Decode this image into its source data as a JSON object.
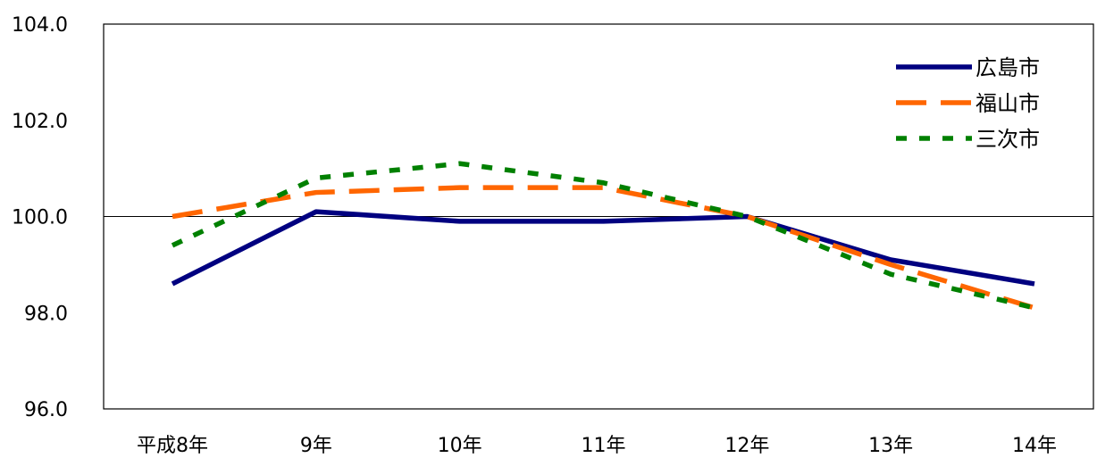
{
  "chart_data": {
    "type": "line",
    "categories": [
      "平成8年",
      "9年",
      "10年",
      "11年",
      "12年",
      "13年",
      "14年"
    ],
    "ylim": [
      96.0,
      104.0
    ],
    "yticks": [
      "104.0",
      "102.0",
      "100.0",
      "98.0",
      "96.0"
    ],
    "ytick_values": [
      104,
      102,
      100,
      98,
      96
    ],
    "reference_line": 100.0,
    "grid": false,
    "legend_position": "top-right",
    "series": [
      {
        "name": "広島市",
        "values": [
          98.6,
          100.1,
          99.9,
          99.9,
          100.0,
          99.1,
          98.6
        ],
        "color": "#000080",
        "style": "solid"
      },
      {
        "name": "福山市",
        "values": [
          100.0,
          100.5,
          100.6,
          100.6,
          100.0,
          99.0,
          98.1
        ],
        "color": "#ff6600",
        "style": "dashed"
      },
      {
        "name": "三次市",
        "values": [
          99.4,
          100.8,
          101.1,
          100.7,
          100.0,
          98.8,
          98.1
        ],
        "color": "#008000",
        "style": "dotted"
      }
    ]
  }
}
